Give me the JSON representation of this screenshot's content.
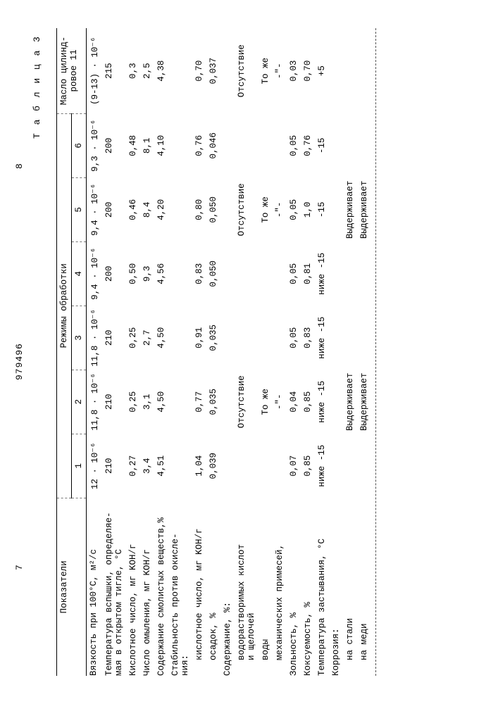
{
  "doc_number": "979496",
  "page_left": "7",
  "page_right": "8",
  "table_caption": "Т а б л и ц а  3",
  "headers": {
    "indicators": "Показатели",
    "modes": "Режимы обработки",
    "cylinder_oil": "Масло цилинд-\nровое 11",
    "cols": [
      "1",
      "2",
      "3",
      "4",
      "5",
      "6"
    ]
  },
  "rows": [
    {
      "label": "Вязкость при 100°С, м²/с",
      "vals": [
        "12 · 10⁻⁶",
        "11,8 · 10⁻⁶",
        "11,8 · 10⁻⁶",
        "9,4 · 10⁻⁶",
        "9,4 · 10⁻⁶",
        "9,3 · 10⁻⁶",
        "(9-13) · 10⁻⁶"
      ]
    },
    {
      "label": "Температура вспышки, определяе-\nмая в открытом тигле, °С",
      "vals": [
        "210",
        "210",
        "210",
        "200",
        "200",
        "200",
        "215"
      ]
    },
    {
      "label": "Кислотное число, мг KOH/г",
      "vals": [
        "0,27",
        "0,25",
        "0,25",
        "0,50",
        "0,46",
        "0,48",
        "0,3"
      ]
    },
    {
      "label": "Число омыления, мг KOH/г",
      "vals": [
        "3,4",
        "3,1",
        "2,7",
        "9,3",
        "8,4",
        "8,1",
        "2,5"
      ]
    },
    {
      "label": "Содержание смолистых веществ,%",
      "vals": [
        "4,51",
        "4,50",
        "4,50",
        "4,56",
        "4,20",
        "4,10",
        "4,38"
      ]
    },
    {
      "label": "Стабильность против окисле-\nния:",
      "vals": [
        "",
        "",
        "",
        "",
        "",
        "",
        ""
      ]
    },
    {
      "label": "кислотное число, мг KOH/г",
      "indent": 1,
      "vals": [
        "1,04",
        "0,77",
        "0,91",
        "0,83",
        "0,80",
        "0,76",
        "0,70"
      ]
    },
    {
      "label": "осадок, %",
      "indent": 1,
      "vals": [
        "0,039",
        "0,035",
        "0,035",
        "0,050",
        "0,050",
        "0,046",
        "0,037"
      ]
    },
    {
      "label": "Содержание, %:",
      "vals": [
        "",
        "",
        "",
        "",
        "",
        "",
        ""
      ]
    },
    {
      "label": "водорастворимых кислот\nи щелочей",
      "indent": 1,
      "span123": "Отсутствие",
      "span456": "Отсутствие",
      "col7": "Отсутствие"
    },
    {
      "label": "воды",
      "indent": 1,
      "span123": "То же",
      "span456": "То же",
      "col7": "То же"
    },
    {
      "label": "механических примесей,",
      "indent": 1,
      "span123": "-\"-",
      "span456": "-\"-",
      "col7": "-\"-"
    },
    {
      "label": "Зольность, %",
      "vals": [
        "0,07",
        "0,04",
        "0,05",
        "0,05",
        "0,05",
        "0,05",
        "0,03"
      ]
    },
    {
      "label": "Коксуемость, %",
      "vals": [
        "0,85",
        "0,85",
        "0,83",
        "0,81",
        "1,0",
        "0,76",
        "0,70"
      ]
    },
    {
      "label": "Температура застывания, °С",
      "vals": [
        "ниже -15",
        "ниже -15",
        "ниже -15",
        "ниже -15",
        "-15",
        "-15",
        "+5"
      ]
    },
    {
      "label": "Коррозия:",
      "vals": [
        "",
        "",
        "",
        "",
        "",
        "",
        ""
      ]
    },
    {
      "label": "на стали",
      "indent": 1,
      "span123": "Выдерживает",
      "span456": "Выдерживает",
      "col7": ""
    },
    {
      "label": "на меди",
      "indent": 1,
      "span123": "Выдерживает",
      "span456": "Выдерживает",
      "col7": ""
    }
  ]
}
